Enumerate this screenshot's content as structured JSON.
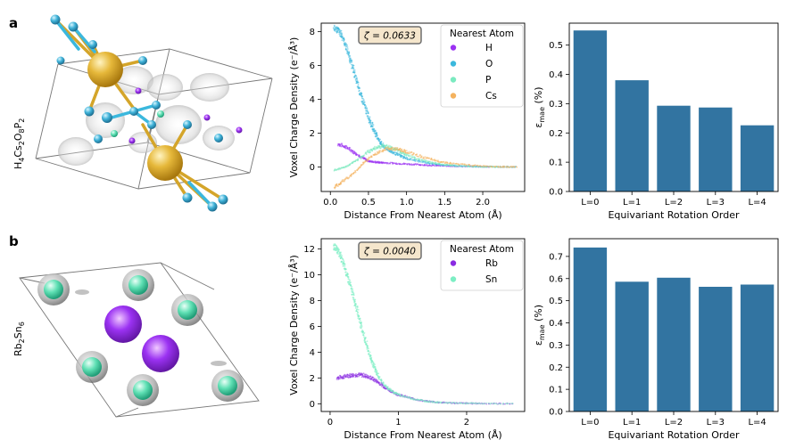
{
  "panels": [
    {
      "letter": "a",
      "formula_parts": [
        "H",
        "4",
        "Cs",
        "2",
        "O",
        "8",
        "P",
        "2"
      ],
      "formula_text": "H4Cs2O8P2",
      "colors": {
        "H": "#9b32f2",
        "O": "#3bb8dd",
        "P": "#7beac0",
        "Cs": "#f4b25e",
        "bar": "#3274a1"
      }
    },
    {
      "letter": "b",
      "formula_parts": [
        "Rb",
        "2",
        "Sn",
        "6"
      ],
      "formula_text": "Rb2Sn6",
      "colors": {
        "Rb": "#8a2be2",
        "Sn": "#7deec4",
        "bar": "#3274a1"
      }
    }
  ],
  "chart_data": [
    {
      "id": "a-density",
      "type": "scatter",
      "xlabel": "Distance From Nearest Atom (Å)",
      "ylabel": "Voxel Charge Density (e⁻/Å³)",
      "annotation": "ζ = 0.0633",
      "legend_title": "Nearest Atom",
      "legend_position": "top-right",
      "xlim": [
        -0.12,
        2.55
      ],
      "ylim": [
        -1.45,
        8.5
      ],
      "xticks": [
        0.0,
        0.5,
        1.0,
        1.5,
        2.0
      ],
      "xtick_labels": [
        "0.0",
        "0.5",
        "1.0",
        "1.5",
        "2.0"
      ],
      "yticks": [
        0,
        2,
        4,
        6,
        8
      ],
      "ytick_labels": [
        "0",
        "2",
        "4",
        "6",
        "8"
      ],
      "series": [
        {
          "name": "H",
          "color": "#9b32f2",
          "points": [
            [
              0.1,
              1.35
            ],
            [
              0.2,
              1.2
            ],
            [
              0.3,
              0.9
            ],
            [
              0.4,
              0.6
            ],
            [
              0.5,
              0.35
            ],
            [
              0.6,
              0.28
            ],
            [
              0.7,
              0.25
            ],
            [
              0.9,
              0.2
            ],
            [
              1.1,
              0.15
            ],
            [
              1.3,
              0.1
            ],
            [
              1.5,
              0.06
            ],
            [
              1.8,
              0.03
            ],
            [
              2.1,
              0.01
            ]
          ]
        },
        {
          "name": "O",
          "color": "#3bb8dd",
          "points": [
            [
              0.05,
              8.2
            ],
            [
              0.1,
              8.1
            ],
            [
              0.15,
              7.8
            ],
            [
              0.2,
              7.2
            ],
            [
              0.25,
              6.5
            ],
            [
              0.3,
              5.8
            ],
            [
              0.35,
              5.0
            ],
            [
              0.4,
              4.3
            ],
            [
              0.45,
              3.6
            ],
            [
              0.5,
              3.0
            ],
            [
              0.55,
              2.4
            ],
            [
              0.6,
              1.95
            ],
            [
              0.65,
              1.5
            ],
            [
              0.7,
              1.2
            ],
            [
              0.8,
              0.9
            ],
            [
              0.9,
              0.7
            ],
            [
              1.0,
              0.5
            ],
            [
              1.2,
              0.3
            ],
            [
              1.4,
              0.15
            ],
            [
              1.6,
              0.08
            ],
            [
              1.9,
              0.03
            ],
            [
              2.2,
              0.01
            ],
            [
              2.45,
              0.0
            ]
          ]
        },
        {
          "name": "P",
          "color": "#7beac0",
          "points": [
            [
              0.05,
              -0.2
            ],
            [
              0.2,
              0.0
            ],
            [
              0.35,
              0.4
            ],
            [
              0.5,
              0.9
            ],
            [
              0.6,
              1.15
            ],
            [
              0.7,
              1.25
            ],
            [
              0.8,
              1.15
            ],
            [
              0.9,
              0.95
            ],
            [
              1.0,
              0.7
            ],
            [
              1.2,
              0.4
            ],
            [
              1.4,
              0.2
            ],
            [
              1.6,
              0.08
            ],
            [
              1.9,
              0.02
            ],
            [
              2.2,
              0.0
            ]
          ]
        },
        {
          "name": "Cs",
          "color": "#f4b25e",
          "points": [
            [
              0.05,
              -1.2
            ],
            [
              0.15,
              -0.9
            ],
            [
              0.3,
              -0.4
            ],
            [
              0.45,
              0.3
            ],
            [
              0.6,
              0.8
            ],
            [
              0.75,
              1.1
            ],
            [
              0.9,
              1.05
            ],
            [
              1.0,
              0.9
            ],
            [
              1.2,
              0.6
            ],
            [
              1.4,
              0.35
            ],
            [
              1.6,
              0.2
            ],
            [
              1.9,
              0.08
            ],
            [
              2.2,
              0.02
            ],
            [
              2.45,
              0.0
            ]
          ]
        }
      ]
    },
    {
      "id": "a-error",
      "type": "bar",
      "xlabel": "Equivariant Rotation Order",
      "ylabel": "ε_mae (%)",
      "categories": [
        "L=0",
        "L=1",
        "L=2",
        "L=3",
        "L=4"
      ],
      "values": [
        0.55,
        0.38,
        0.293,
        0.287,
        0.226
      ],
      "ylim": [
        0,
        0.575
      ],
      "yticks": [
        0.0,
        0.1,
        0.2,
        0.3,
        0.4,
        0.5
      ],
      "ytick_labels": [
        "0.0",
        "0.1",
        "0.2",
        "0.3",
        "0.4",
        "0.5"
      ]
    },
    {
      "id": "b-density",
      "type": "scatter",
      "xlabel": "Distance From Nearest Atom (Å)",
      "ylabel": "Voxel Charge Density (e⁻/Å³)",
      "annotation": "ζ = 0.0040",
      "legend_title": "Nearest Atom",
      "legend_position": "top-right",
      "xlim": [
        -0.13,
        2.85
      ],
      "ylim": [
        -0.6,
        12.8
      ],
      "xticks": [
        0,
        1,
        2
      ],
      "xtick_labels": [
        "0",
        "1",
        "2"
      ],
      "yticks": [
        0,
        2,
        4,
        6,
        8,
        10,
        12
      ],
      "ytick_labels": [
        "0",
        "2",
        "4",
        "6",
        "8",
        "10",
        "12"
      ],
      "series": [
        {
          "name": "Rb",
          "color": "#8a2be2",
          "points": [
            [
              0.1,
              2.0
            ],
            [
              0.2,
              2.1
            ],
            [
              0.3,
              2.2
            ],
            [
              0.4,
              2.25
            ],
            [
              0.5,
              2.2
            ],
            [
              0.6,
              2.0
            ],
            [
              0.7,
              1.7
            ],
            [
              0.8,
              1.3
            ],
            [
              0.9,
              0.95
            ],
            [
              1.0,
              0.7
            ],
            [
              1.2,
              0.4
            ],
            [
              1.4,
              0.2
            ],
            [
              1.6,
              0.1
            ],
            [
              1.9,
              0.04
            ],
            [
              2.2,
              0.02
            ],
            [
              2.7,
              0.0
            ]
          ]
        },
        {
          "name": "Sn",
          "color": "#7deec4",
          "points": [
            [
              0.05,
              12.2
            ],
            [
              0.1,
              12.0
            ],
            [
              0.15,
              11.5
            ],
            [
              0.2,
              10.8
            ],
            [
              0.25,
              10.0
            ],
            [
              0.3,
              9.1
            ],
            [
              0.35,
              8.2
            ],
            [
              0.4,
              7.2
            ],
            [
              0.45,
              6.2
            ],
            [
              0.5,
              5.2
            ],
            [
              0.55,
              4.3
            ],
            [
              0.6,
              3.5
            ],
            [
              0.65,
              2.8
            ],
            [
              0.7,
              2.2
            ],
            [
              0.8,
              1.4
            ],
            [
              0.9,
              1.0
            ],
            [
              1.0,
              0.7
            ],
            [
              1.2,
              0.4
            ],
            [
              1.4,
              0.2
            ],
            [
              1.6,
              0.1
            ],
            [
              1.9,
              0.04
            ],
            [
              2.2,
              0.02
            ],
            [
              2.7,
              0.0
            ]
          ]
        }
      ]
    },
    {
      "id": "b-error",
      "type": "bar",
      "xlabel": "Equivariant Rotation Order",
      "ylabel": "ε_mae (%)",
      "categories": [
        "L=0",
        "L=1",
        "L=2",
        "L=3",
        "L=4"
      ],
      "values": [
        0.74,
        0.586,
        0.604,
        0.563,
        0.573
      ],
      "ylim": [
        0,
        0.78
      ],
      "yticks": [
        0.0,
        0.1,
        0.2,
        0.3,
        0.4,
        0.5,
        0.6,
        0.7
      ],
      "ytick_labels": [
        "0.0",
        "0.1",
        "0.2",
        "0.3",
        "0.4",
        "0.5",
        "0.6",
        "0.7"
      ]
    }
  ]
}
